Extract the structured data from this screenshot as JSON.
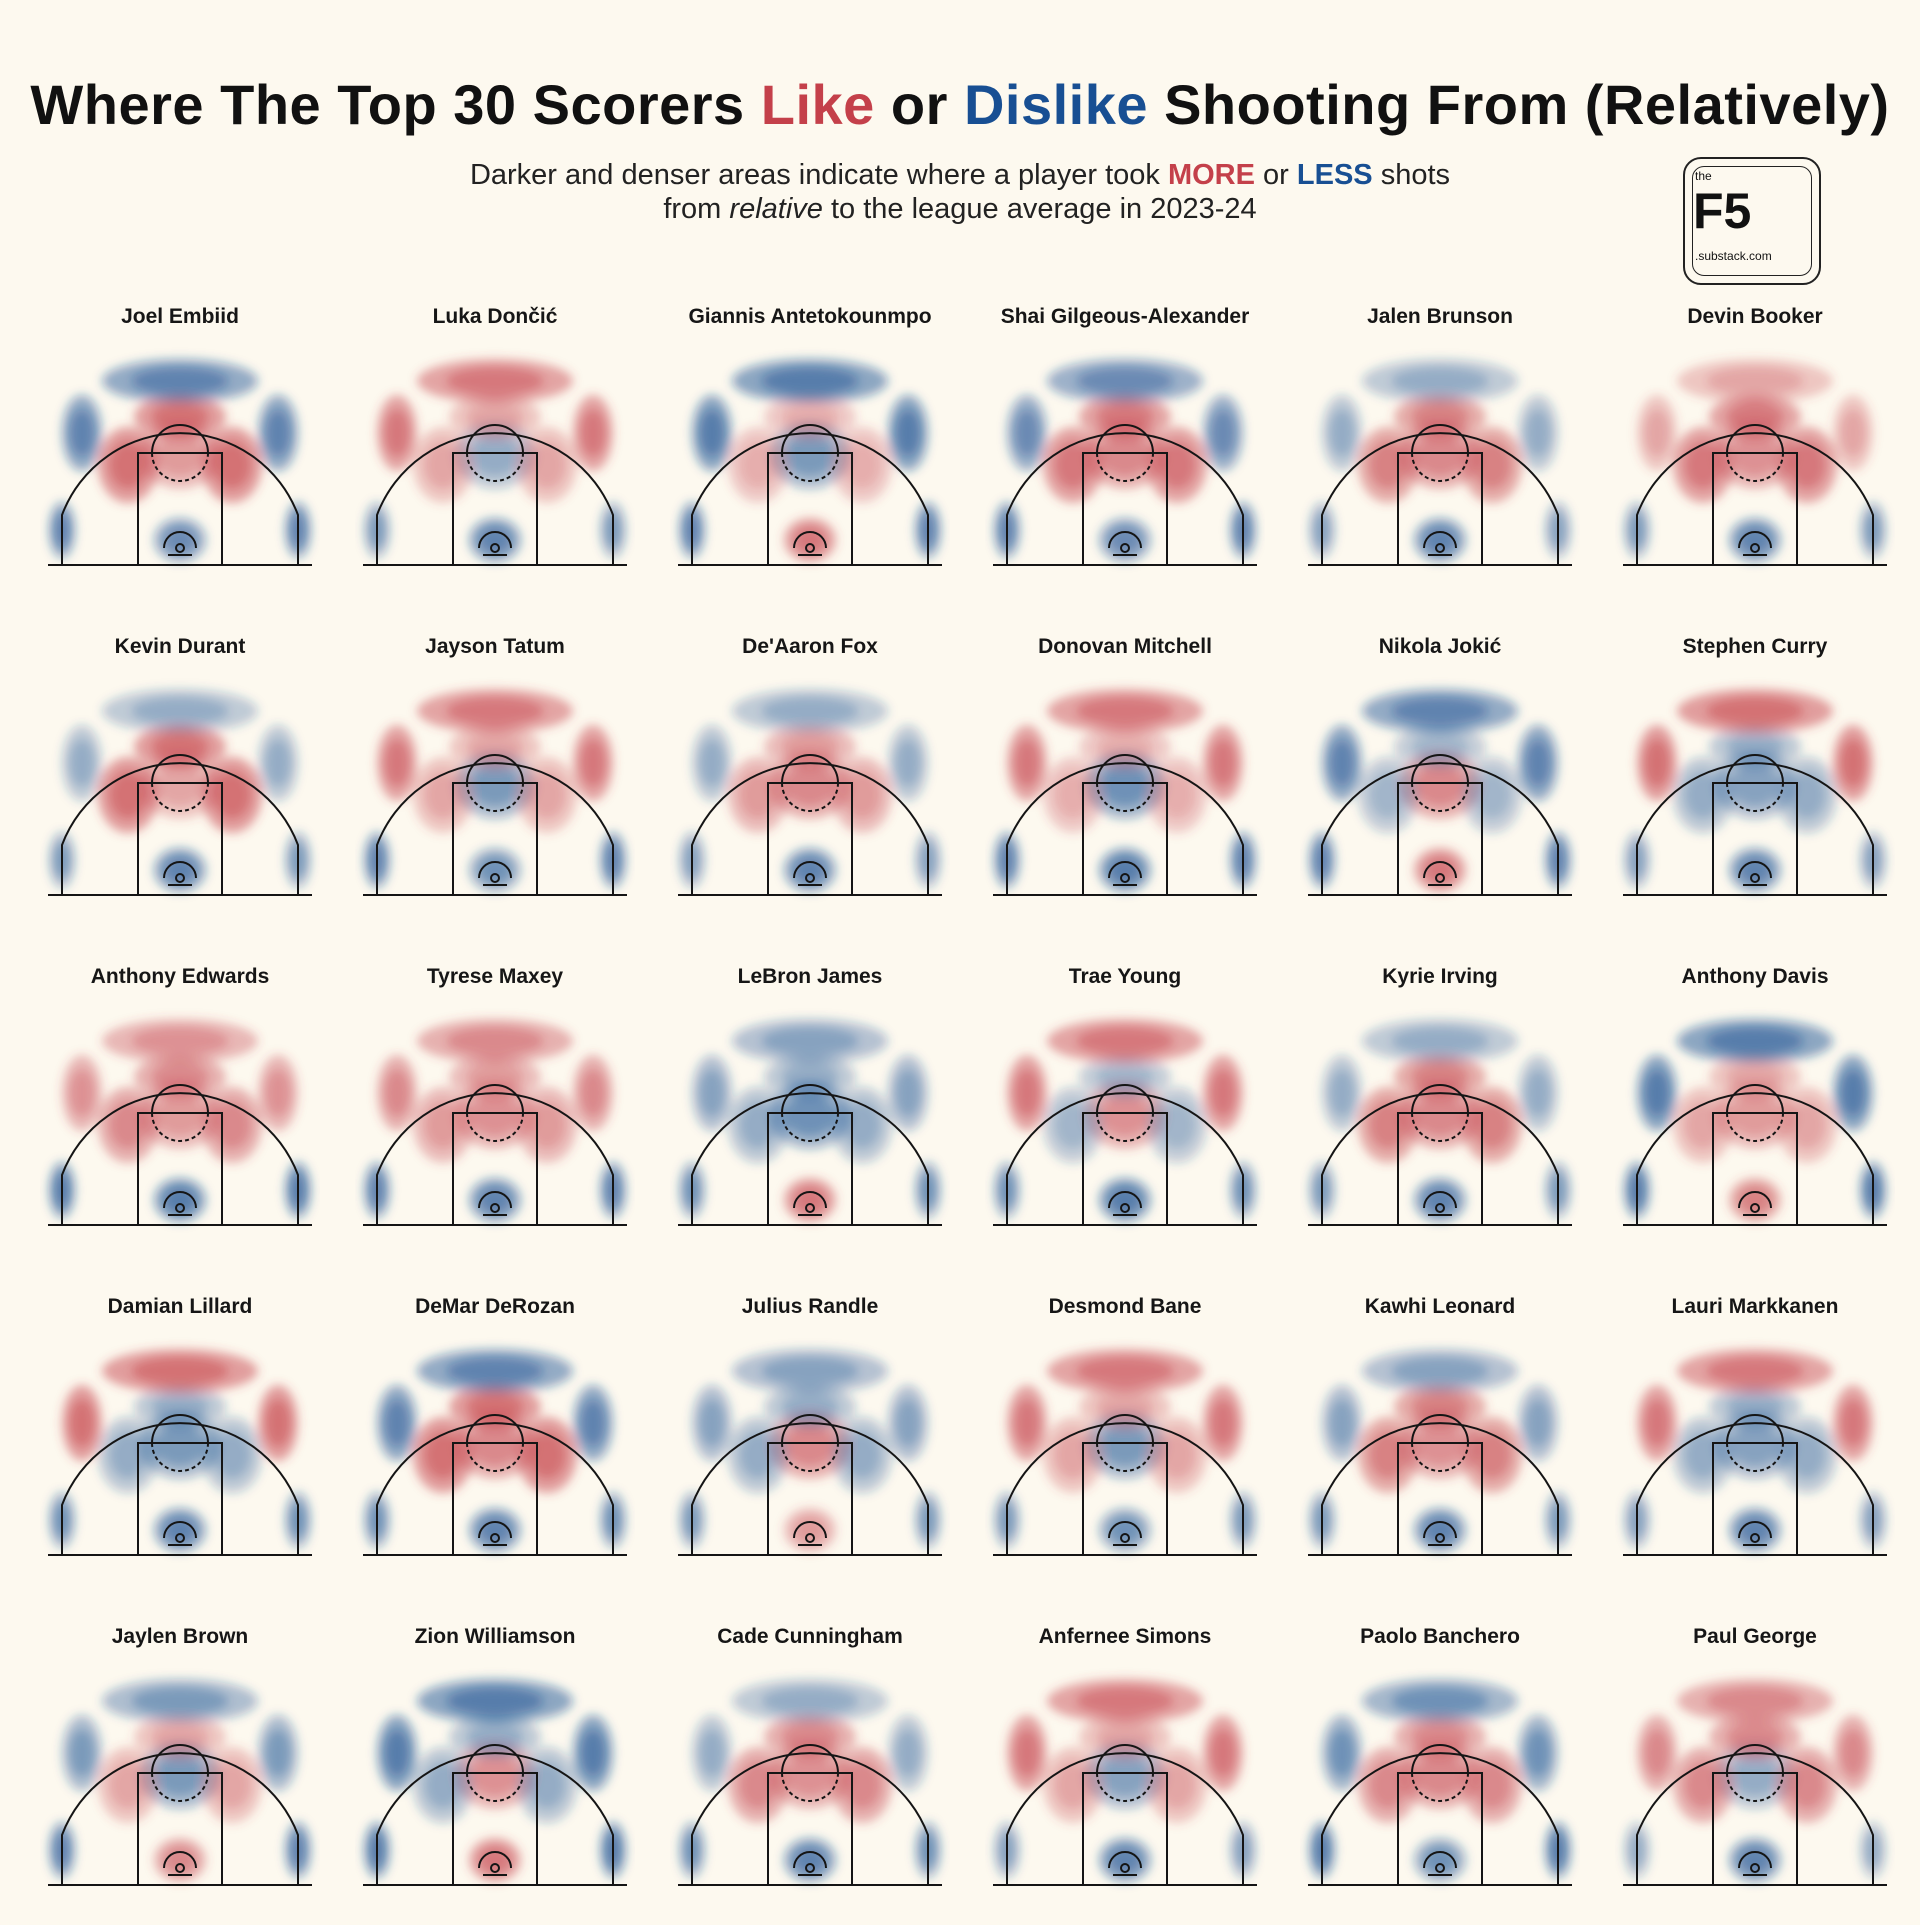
{
  "title": {
    "part1": "Where The Top 30 Scorers",
    "like": "Like",
    "or": "or",
    "dislike": "Dislike",
    "part2": "Shooting  From (Relatively)"
  },
  "subtitle": {
    "line1_a": "Darker and denser areas indicate where a player took",
    "more": "MORE",
    "line1_or": "or",
    "less": "LESS",
    "line1_b": "shots",
    "line2_a": "from",
    "relative": "relative",
    "line2_b": "to the league average in 2023-24"
  },
  "logo": {
    "the": "the",
    "name": "F5",
    "domain": ".substack.com"
  },
  "colors": {
    "more": "#c4404a",
    "less": "#184f93",
    "background": "#fdf9ef"
  },
  "chart_data": {
    "type": "heatmap",
    "encoding": "shot frequency relative to the 2023-24 league average; red = more, blue = less",
    "regions": [
      "rim",
      "paint",
      "mid-range",
      "corner-3",
      "above-break-3"
    ],
    "players": [
      {
        "name": "Joel Embiid",
        "zones": {
          "rim": -0.7,
          "paint": 0.4,
          "mid-range": 0.9,
          "corner-3": -0.8,
          "above-break-3": -0.8
        }
      },
      {
        "name": "Luka Dončić",
        "zones": {
          "rim": -0.8,
          "paint": -0.3,
          "mid-range": 0.3,
          "corner-3": -0.5,
          "above-break-3": 0.8
        }
      },
      {
        "name": "Giannis Antetokounmpo",
        "zones": {
          "rim": 0.8,
          "paint": -0.5,
          "mid-range": 0.2,
          "corner-3": -0.8,
          "above-break-3": -0.9
        }
      },
      {
        "name": "Shai Gilgeous-Alexander",
        "zones": {
          "rim": -0.7,
          "paint": 0.6,
          "mid-range": 0.8,
          "corner-3": -0.8,
          "above-break-3": -0.7
        }
      },
      {
        "name": "Jalen Brunson",
        "zones": {
          "rim": -0.8,
          "paint": 0.6,
          "mid-range": 0.7,
          "corner-3": -0.4,
          "above-break-3": -0.3
        }
      },
      {
        "name": "Devin Booker",
        "zones": {
          "rim": -0.8,
          "paint": 0.5,
          "mid-range": 0.8,
          "corner-3": -0.5,
          "above-break-3": 0.3
        }
      },
      {
        "name": "Kevin Durant",
        "zones": {
          "rim": -0.8,
          "paint": 0.3,
          "mid-range": 0.9,
          "corner-3": -0.5,
          "above-break-3": -0.3
        }
      },
      {
        "name": "Jayson Tatum",
        "zones": {
          "rim": -0.6,
          "paint": -0.5,
          "mid-range": 0.3,
          "corner-3": -0.8,
          "above-break-3": 0.8
        }
      },
      {
        "name": "De'Aaron Fox",
        "zones": {
          "rim": -0.8,
          "paint": 0.6,
          "mid-range": 0.4,
          "corner-3": -0.4,
          "above-break-3": -0.3
        }
      },
      {
        "name": "Donovan Mitchell",
        "zones": {
          "rim": -0.9,
          "paint": -0.6,
          "mid-range": 0.2,
          "corner-3": -0.8,
          "above-break-3": 0.8
        }
      },
      {
        "name": "Nikola Jokić",
        "zones": {
          "rim": 0.8,
          "paint": 0.6,
          "mid-range": -0.2,
          "corner-3": -0.8,
          "above-break-3": -0.8
        }
      },
      {
        "name": "Stephen Curry",
        "zones": {
          "rim": -0.8,
          "paint": -0.4,
          "mid-range": -0.3,
          "corner-3": -0.4,
          "above-break-3": 0.9
        }
      },
      {
        "name": "Anthony Edwards",
        "zones": {
          "rim": -0.9,
          "paint": 0.4,
          "mid-range": 0.6,
          "corner-3": -0.9,
          "above-break-3": 0.5
        }
      },
      {
        "name": "Tyrese Maxey",
        "zones": {
          "rim": -0.8,
          "paint": 0.5,
          "mid-range": 0.4,
          "corner-3": -0.8,
          "above-break-3": 0.6
        }
      },
      {
        "name": "LeBron James",
        "zones": {
          "rim": 0.8,
          "paint": -0.6,
          "mid-range": -0.3,
          "corner-3": -0.6,
          "above-break-3": -0.4
        }
      },
      {
        "name": "Trae Young",
        "zones": {
          "rim": -0.9,
          "paint": 0.5,
          "mid-range": -0.2,
          "corner-3": -0.6,
          "above-break-3": 0.8
        }
      },
      {
        "name": "Kyrie Irving",
        "zones": {
          "rim": -0.8,
          "paint": 0.6,
          "mid-range": 0.7,
          "corner-3": -0.5,
          "above-break-3": -0.3
        }
      },
      {
        "name": "Anthony Davis",
        "zones": {
          "rim": 0.7,
          "paint": 0.4,
          "mid-range": 0.3,
          "corner-3": -0.9,
          "above-break-3": -0.9
        }
      },
      {
        "name": "Damian Lillard",
        "zones": {
          "rim": -0.8,
          "paint": -0.5,
          "mid-range": -0.3,
          "corner-3": -0.6,
          "above-break-3": 0.9
        }
      },
      {
        "name": "DeMar DeRozan",
        "zones": {
          "rim": -0.8,
          "paint": 0.6,
          "mid-range": 0.9,
          "corner-3": -0.6,
          "above-break-3": -0.8
        }
      },
      {
        "name": "Julius Randle",
        "zones": {
          "rim": 0.4,
          "paint": 0.6,
          "mid-range": -0.3,
          "corner-3": -0.5,
          "above-break-3": -0.4
        }
      },
      {
        "name": "Desmond Bane",
        "zones": {
          "rim": -0.6,
          "paint": -0.5,
          "mid-range": 0.3,
          "corner-3": -0.5,
          "above-break-3": 0.8
        }
      },
      {
        "name": "Kawhi Leonard",
        "zones": {
          "rim": -0.8,
          "paint": 0.5,
          "mid-range": 0.7,
          "corner-3": -0.5,
          "above-break-3": -0.4
        }
      },
      {
        "name": "Lauri Markkanen",
        "zones": {
          "rim": -0.8,
          "paint": -0.4,
          "mid-range": -0.3,
          "corner-3": -0.4,
          "above-break-3": 0.8
        }
      },
      {
        "name": "Jaylen Brown",
        "zones": {
          "rim": 0.6,
          "paint": -0.5,
          "mid-range": 0.3,
          "corner-3": -0.8,
          "above-break-3": -0.5
        }
      },
      {
        "name": "Zion Williamson",
        "zones": {
          "rim": 0.8,
          "paint": 0.5,
          "mid-range": -0.3,
          "corner-3": -0.9,
          "above-break-3": -0.9
        }
      },
      {
        "name": "Cade Cunningham",
        "zones": {
          "rim": -0.8,
          "paint": 0.5,
          "mid-range": 0.6,
          "corner-3": -0.6,
          "above-break-3": -0.3
        }
      },
      {
        "name": "Anfernee Simons",
        "zones": {
          "rim": -0.8,
          "paint": -0.4,
          "mid-range": 0.3,
          "corner-3": -0.4,
          "above-break-3": 0.8
        }
      },
      {
        "name": "Paolo Banchero",
        "zones": {
          "rim": -0.6,
          "paint": 0.6,
          "mid-range": 0.6,
          "corner-3": -0.9,
          "above-break-3": -0.6
        }
      },
      {
        "name": "Paul George",
        "zones": {
          "rim": -0.8,
          "paint": -0.3,
          "mid-range": 0.6,
          "corner-3": -0.3,
          "above-break-3": 0.6
        }
      }
    ]
  }
}
